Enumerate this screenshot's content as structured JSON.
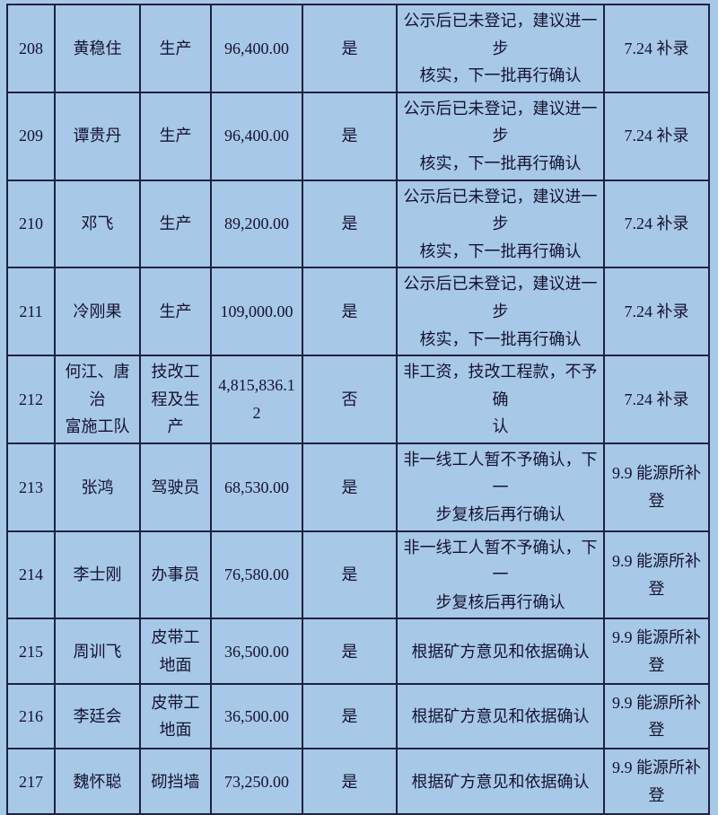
{
  "colors": {
    "background": "#a8c8e8",
    "grid_line": "#1e2240",
    "text": "#13132f"
  },
  "table": {
    "description": "wage confirmation list rows 208-217",
    "columns": [
      "seq",
      "name",
      "job",
      "amount",
      "confirm",
      "remark",
      "note"
    ],
    "rows": [
      {
        "seq": "208",
        "name": "黄稳住",
        "job": "生产",
        "amount": "96,400.00",
        "confirm": "是",
        "remark": "公示后已未登记，建议进一步\n核实，下一批再行确认",
        "note": "7.24 补录"
      },
      {
        "seq": "209",
        "name": "谭贵丹",
        "job": "生产",
        "amount": "96,400.00",
        "confirm": "是",
        "remark": "公示后已未登记，建议进一步\n核实，下一批再行确认",
        "note": "7.24 补录"
      },
      {
        "seq": "210",
        "name": "邓飞",
        "job": "生产",
        "amount": "89,200.00",
        "confirm": "是",
        "remark": "公示后已未登记，建议进一步\n核实，下一批再行确认",
        "note": "7.24 补录"
      },
      {
        "seq": "211",
        "name": "冷刚果",
        "job": "生产",
        "amount": "109,000.00",
        "confirm": "是",
        "remark": "公示后已未登记，建议进一步\n核实，下一批再行确认",
        "note": "7.24 补录"
      },
      {
        "seq": "212",
        "name": "何江、唐治\n富施工队",
        "job": "技改工\n程及生\n产",
        "amount": "4,815,836.12",
        "confirm": "否",
        "remark": "非工资，技改工程款，不予确\n认",
        "note": "7.24 补录"
      },
      {
        "seq": "213",
        "name": "张鸿",
        "job": "驾驶员",
        "amount": "68,530.00",
        "confirm": "是",
        "remark": "非一线工人暂不予确认，下一\n步复核后再行确认",
        "note": "9.9 能源所补\n登"
      },
      {
        "seq": "214",
        "name": "李士刚",
        "job": "办事员",
        "amount": "76,580.00",
        "confirm": "是",
        "remark": "非一线工人暂不予确认，下一\n步复核后再行确认",
        "note": "9.9 能源所补\n登"
      },
      {
        "seq": "215",
        "name": "周训飞",
        "job": "皮带工\n地面",
        "amount": "36,500.00",
        "confirm": "是",
        "remark": "根据矿方意见和依据确认",
        "note": "9.9 能源所补\n登"
      },
      {
        "seq": "216",
        "name": "李廷会",
        "job": "皮带工\n地面",
        "amount": "36,500.00",
        "confirm": "是",
        "remark": "根据矿方意见和依据确认",
        "note": "9.9 能源所补\n登"
      },
      {
        "seq": "217",
        "name": "魏怀聪",
        "job": "砌挡墙",
        "amount": "73,250.00",
        "confirm": "是",
        "remark": "根据矿方意见和依据确认",
        "note": "9.9 能源所补\n登"
      }
    ]
  }
}
